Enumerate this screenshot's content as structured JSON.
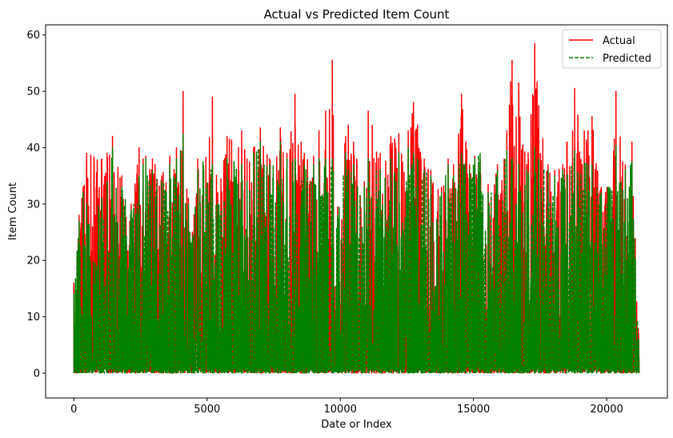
{
  "chart_data": {
    "type": "line",
    "title": "Actual vs Predicted Item Count",
    "xlabel": "Date or Index",
    "ylabel": "Item Count",
    "xlim": [
      -1060,
      22280
    ],
    "ylim": [
      -4.4,
      61.8
    ],
    "xticks": [
      0,
      5000,
      10000,
      15000,
      20000
    ],
    "yticks": [
      0,
      10,
      20,
      30,
      40,
      50,
      60
    ],
    "grid": false,
    "legend_position": "top-right",
    "x_range": [
      0,
      21200
    ],
    "series": [
      {
        "name": "Actual",
        "color": "#ff0000",
        "style": "solid",
        "peaks": [
          [
            0,
            16
          ],
          [
            200,
            28
          ],
          [
            350,
            33
          ],
          [
            480,
            39
          ],
          [
            1050,
            38
          ],
          [
            1250,
            39
          ],
          [
            1450,
            42
          ],
          [
            1800,
            35
          ],
          [
            2150,
            30
          ],
          [
            2450,
            40
          ],
          [
            2600,
            38
          ],
          [
            2700,
            38.5
          ],
          [
            2950,
            38
          ],
          [
            3300,
            35
          ],
          [
            3600,
            38.5
          ],
          [
            3850,
            40
          ],
          [
            4100,
            50
          ],
          [
            4300,
            31
          ],
          [
            4450,
            25
          ],
          [
            4650,
            38
          ],
          [
            4850,
            37
          ],
          [
            5200,
            49
          ],
          [
            5400,
            32
          ],
          [
            5750,
            42
          ],
          [
            6300,
            43
          ],
          [
            6500,
            38
          ],
          [
            6750,
            40
          ],
          [
            7000,
            43.5
          ],
          [
            7350,
            38
          ],
          [
            7750,
            43.5
          ],
          [
            8000,
            39
          ],
          [
            8300,
            49.5
          ],
          [
            8650,
            39
          ],
          [
            9000,
            38.5
          ],
          [
            9200,
            43
          ],
          [
            9450,
            46.5
          ],
          [
            9700,
            55.5
          ],
          [
            9900,
            29.5
          ],
          [
            10200,
            42
          ],
          [
            10300,
            44
          ],
          [
            10500,
            41
          ],
          [
            10900,
            34
          ],
          [
            11050,
            46.5
          ],
          [
            11500,
            39
          ],
          [
            11900,
            42
          ],
          [
            12200,
            42.5
          ],
          [
            12550,
            43
          ],
          [
            12700,
            46
          ],
          [
            12750,
            48
          ],
          [
            12900,
            44
          ],
          [
            13150,
            38
          ],
          [
            13400,
            36
          ],
          [
            13800,
            33
          ],
          [
            14050,
            38
          ],
          [
            14250,
            37
          ],
          [
            14550,
            49.5
          ],
          [
            14850,
            37
          ],
          [
            15050,
            38.5
          ],
          [
            15250,
            38
          ],
          [
            15550,
            33.5
          ],
          [
            15900,
            37
          ],
          [
            16250,
            43
          ],
          [
            16450,
            55.5
          ],
          [
            16700,
            51.5
          ],
          [
            17000,
            37
          ],
          [
            17300,
            58.5
          ],
          [
            17450,
            47.5
          ],
          [
            17800,
            37
          ],
          [
            18050,
            36
          ],
          [
            18350,
            37
          ],
          [
            18800,
            50.5
          ],
          [
            19300,
            43
          ],
          [
            19450,
            45.5
          ],
          [
            19800,
            33
          ],
          [
            20050,
            33
          ],
          [
            20350,
            50
          ],
          [
            20700,
            37
          ],
          [
            20950,
            41
          ],
          [
            21200,
            7
          ]
        ]
      },
      {
        "name": "Predicted",
        "color": "#008000",
        "style": "dashed",
        "peaks": [
          [
            0,
            14
          ],
          [
            200,
            27
          ],
          [
            350,
            32
          ],
          [
            480,
            30
          ],
          [
            1050,
            31
          ],
          [
            1250,
            34
          ],
          [
            1450,
            40
          ],
          [
            1800,
            33
          ],
          [
            2150,
            29
          ],
          [
            2450,
            35
          ],
          [
            2600,
            37
          ],
          [
            2700,
            38
          ],
          [
            2950,
            36
          ],
          [
            3300,
            34
          ],
          [
            3600,
            37
          ],
          [
            3850,
            38
          ],
          [
            4100,
            42.5
          ],
          [
            4300,
            30
          ],
          [
            4450,
            24
          ],
          [
            4650,
            36
          ],
          [
            4850,
            37.5
          ],
          [
            5200,
            37
          ],
          [
            5400,
            30
          ],
          [
            5750,
            38
          ],
          [
            6300,
            37
          ],
          [
            6500,
            34
          ],
          [
            6750,
            39
          ],
          [
            7000,
            41
          ],
          [
            7350,
            37
          ],
          [
            7750,
            41
          ],
          [
            8000,
            38
          ],
          [
            8300,
            38
          ],
          [
            8650,
            37
          ],
          [
            9000,
            37
          ],
          [
            9200,
            38
          ],
          [
            9450,
            38
          ],
          [
            9700,
            38
          ],
          [
            9900,
            28
          ],
          [
            10200,
            39
          ],
          [
            10300,
            36
          ],
          [
            10500,
            37
          ],
          [
            10900,
            33
          ],
          [
            11050,
            38
          ],
          [
            11500,
            36
          ],
          [
            11900,
            38
          ],
          [
            12200,
            39
          ],
          [
            12550,
            40
          ],
          [
            12700,
            37
          ],
          [
            12750,
            39
          ],
          [
            12900,
            38
          ],
          [
            13150,
            36
          ],
          [
            13400,
            35
          ],
          [
            13800,
            32
          ],
          [
            14050,
            37
          ],
          [
            14250,
            35
          ],
          [
            14550,
            39
          ],
          [
            14850,
            36
          ],
          [
            15050,
            38
          ],
          [
            15250,
            39
          ],
          [
            15550,
            32
          ],
          [
            15900,
            36
          ],
          [
            16250,
            39.5
          ],
          [
            16450,
            38
          ],
          [
            16700,
            37
          ],
          [
            17000,
            36
          ],
          [
            17300,
            40
          ],
          [
            17450,
            38
          ],
          [
            17800,
            36
          ],
          [
            18050,
            35
          ],
          [
            18350,
            36
          ],
          [
            18800,
            39.5
          ],
          [
            19300,
            37
          ],
          [
            19450,
            37
          ],
          [
            19800,
            32
          ],
          [
            20050,
            33
          ],
          [
            20350,
            40.5
          ],
          [
            20700,
            36
          ],
          [
            20950,
            37.5
          ],
          [
            21200,
            6
          ]
        ]
      }
    ]
  }
}
